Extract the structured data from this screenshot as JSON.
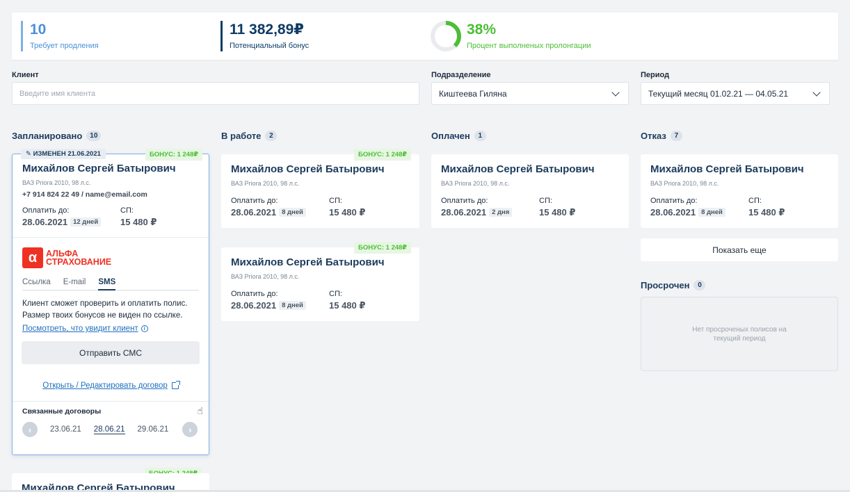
{
  "stats": [
    {
      "value": "10",
      "label": "Требует продления"
    },
    {
      "value": "11 382,89₽",
      "label": "Потенциальный бонус"
    },
    {
      "value": "38%",
      "label": "Процент выполненых пролонгации",
      "progress": 0.38
    }
  ],
  "filters": {
    "client_label": "Клиент",
    "client_placeholder": "Введите имя клиента",
    "division_label": "Подразделение",
    "division_value": "Киштеева Гиляна",
    "period_label": "Период",
    "period_value": "Текущий месяц 01.02.21 — 04.05.21"
  },
  "columns": [
    {
      "title": "Запланировано",
      "count": "10"
    },
    {
      "title": "В работе",
      "count": "2"
    },
    {
      "title": "Оплачен",
      "count": "1"
    },
    {
      "title": "Отказ",
      "count": "7"
    }
  ],
  "card": {
    "name": "Михайлов Сергей Батырович",
    "car": "ВАЗ Priora 2010, 98 л.с.",
    "pay_label": "Оплатить до:",
    "pay_date": "28.06.2021",
    "sp_label": "СП:",
    "sp_value": "15 480 ₽",
    "bonus": "БОНУС: 1 248₽"
  },
  "expanded": {
    "modified": "ИЗМЕНЕН 21.06.2021",
    "contact": "+7 914 824 22 49 / name@email.com",
    "days": "12 дней",
    "brand_line1": "АЛЬФА",
    "brand_line2": "СТРАХОВАНИЕ",
    "tabs": [
      "Ссылка",
      "E-mail",
      "SMS"
    ],
    "desc": "Клиент сможет проверить и оплатить полис. Размер твоих бонусов не виден по ссылке.",
    "see_link": "Посмотреть, что увидит клиент",
    "send_button": "Отправить СМС",
    "open_link": "Открыть / Редактировать договор",
    "related_title": "Связанные договоры",
    "dates": [
      "23.06.21",
      "28.06.21",
      "29.06.21"
    ]
  },
  "work_days": [
    "8 дней",
    "8 дней"
  ],
  "paid_days": "2 дня",
  "refused_days": "8 дней",
  "show_more": "Показать еще",
  "overdue": {
    "title": "Просрочен",
    "count": "0",
    "empty": "Нет просроченых полисов на текущий период"
  }
}
